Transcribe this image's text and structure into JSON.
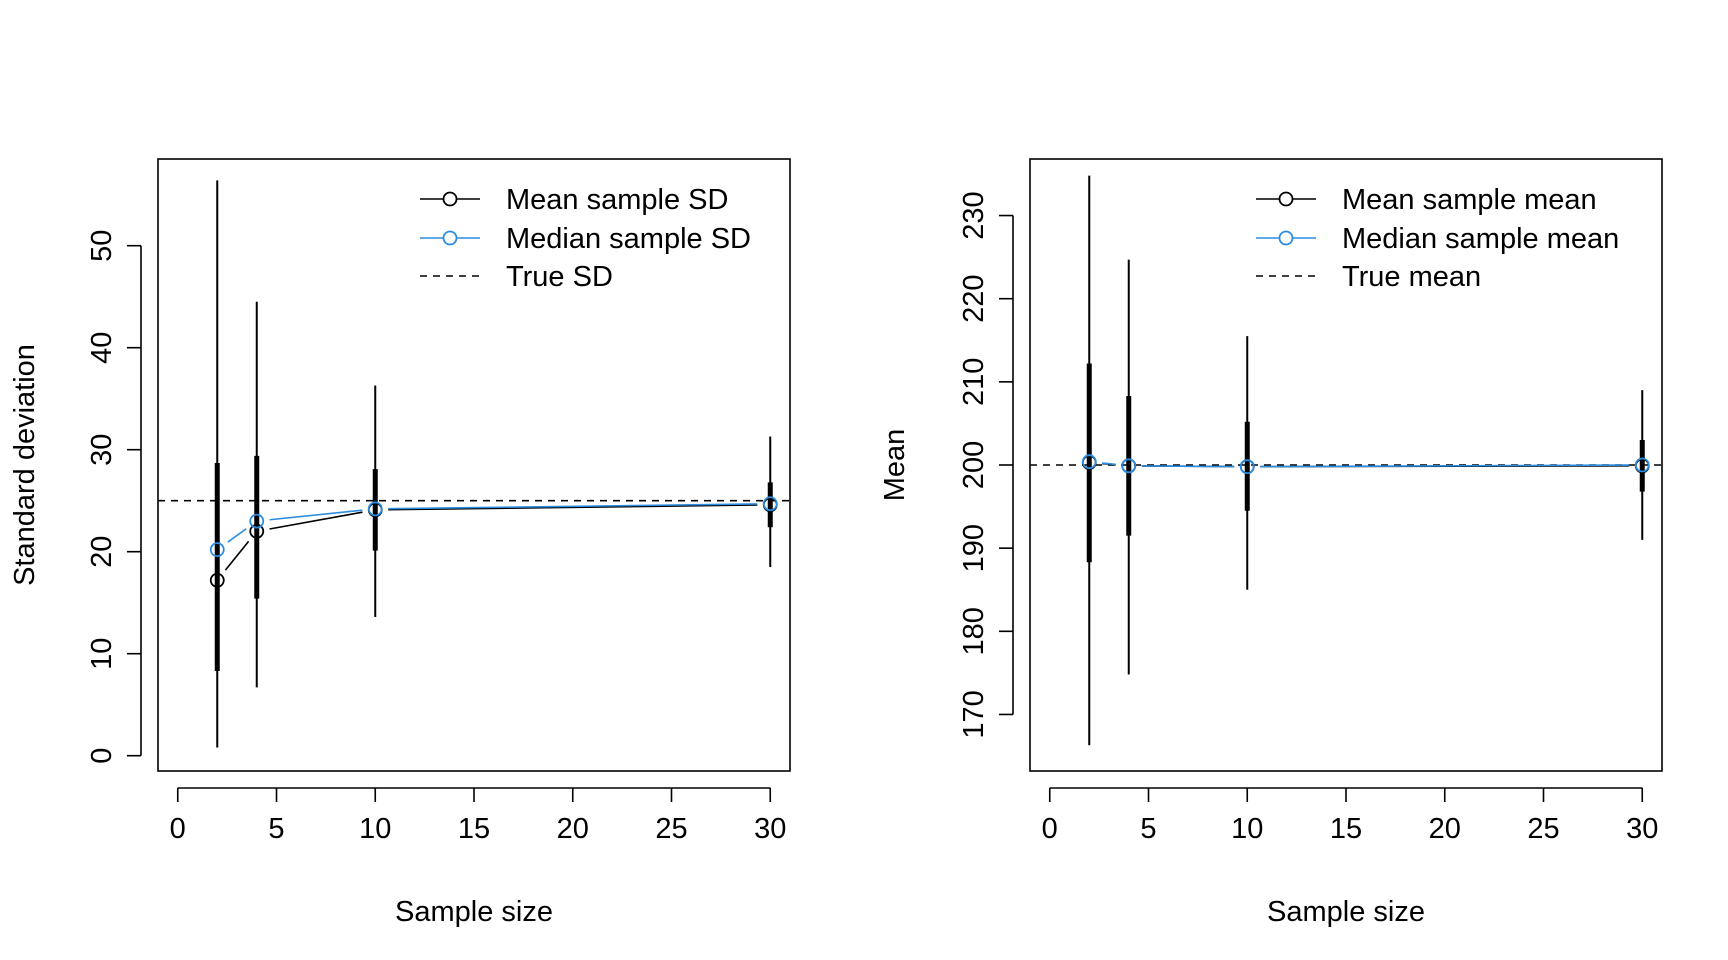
{
  "chart_data": [
    {
      "type": "line",
      "xlabel": "Sample size",
      "ylabel": "Standard deviation",
      "xlim": [
        -1,
        31
      ],
      "ylim": [
        -1.5,
        58.5
      ],
      "xticks": [
        0,
        5,
        10,
        15,
        20,
        25,
        30
      ],
      "yticks": [
        0,
        10,
        20,
        30,
        40,
        50
      ],
      "x": [
        2,
        4,
        10,
        30
      ],
      "series": [
        {
          "name": "Mean sample SD",
          "color": "#000000",
          "values": [
            17.2,
            22.0,
            24.1,
            24.6
          ]
        },
        {
          "name": "Median sample SD",
          "color": "#2b8ce0",
          "values": [
            20.2,
            23.0,
            24.2,
            24.7
          ]
        },
        {
          "name": "True SD",
          "color": "#000000",
          "dashed": true,
          "reference": 25
        }
      ],
      "intervals_outer": [
        [
          0.8,
          56.4
        ],
        [
          6.7,
          44.5
        ],
        [
          13.6,
          36.3
        ],
        [
          18.5,
          31.3
        ]
      ],
      "intervals_inner": [
        [
          8.3,
          28.7
        ],
        [
          15.4,
          29.4
        ],
        [
          20.1,
          28.1
        ],
        [
          22.4,
          26.8
        ]
      ],
      "legend_position": "top-right"
    },
    {
      "type": "line",
      "xlabel": "Sample size",
      "ylabel": "Mean",
      "xlim": [
        -1,
        31
      ],
      "ylim": [
        163.2,
        236.8
      ],
      "xticks": [
        0,
        5,
        10,
        15,
        20,
        25,
        30
      ],
      "yticks": [
        170,
        180,
        190,
        200,
        210,
        220,
        230
      ],
      "x": [
        2,
        4,
        10,
        30
      ],
      "series": [
        {
          "name": "Mean sample mean",
          "color": "#000000",
          "values": [
            200.3,
            199.9,
            199.8,
            199.9
          ]
        },
        {
          "name": "Median sample mean",
          "color": "#2b8ce0",
          "values": [
            200.4,
            199.9,
            199.8,
            200.0
          ]
        },
        {
          "name": "True mean",
          "color": "#000000",
          "dashed": true,
          "reference": 200
        }
      ],
      "intervals_outer": [
        [
          166.3,
          234.8
        ],
        [
          174.8,
          224.7
        ],
        [
          185.0,
          215.5
        ],
        [
          191.0,
          209.0
        ]
      ],
      "intervals_inner": [
        [
          188.3,
          212.2
        ],
        [
          191.5,
          208.3
        ],
        [
          194.5,
          205.2
        ],
        [
          196.8,
          203.0
        ]
      ],
      "legend_position": "top-right"
    }
  ]
}
